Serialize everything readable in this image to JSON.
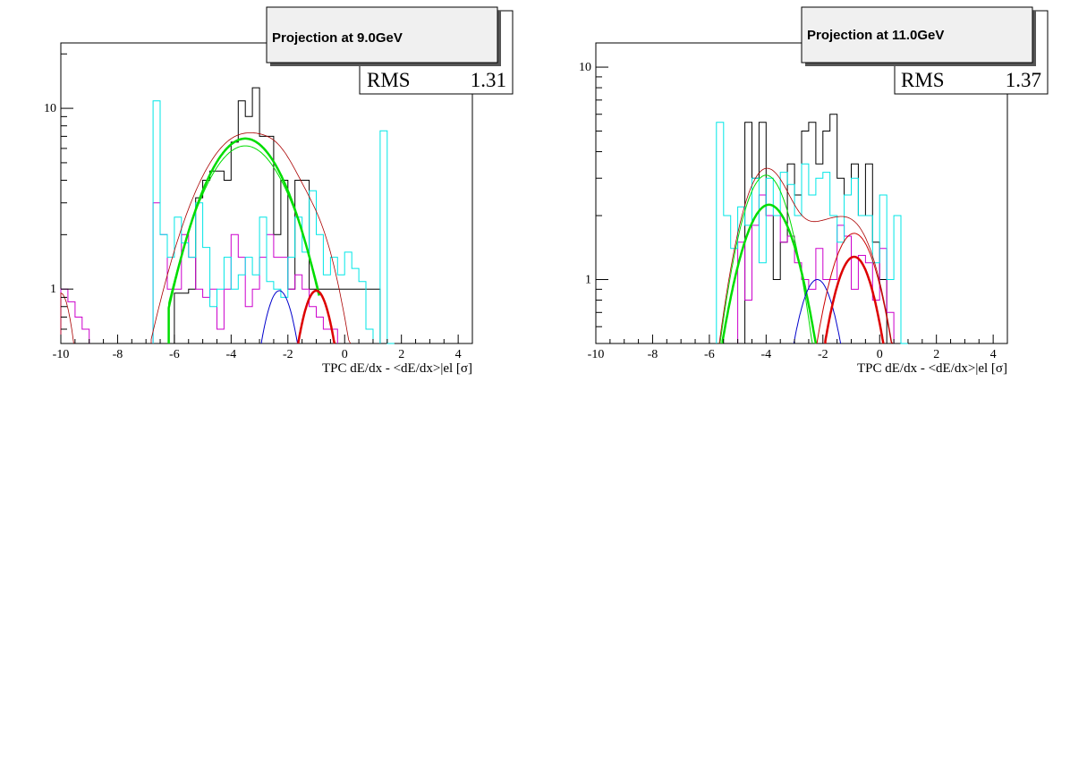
{
  "chart_data": [
    {
      "type": "histogram",
      "title": "Projection at 9.0GeV",
      "xlabel": "TPC dE/dx - <dE/dx>|el [σ]",
      "ylabel": "",
      "log_y": true,
      "xlim": [
        -10,
        4.5
      ],
      "ylim": [
        0.5,
        23
      ],
      "x_ticks": [
        "-10",
        "-8",
        "-6",
        "-4",
        "-2",
        "0",
        "2",
        "4"
      ],
      "y_ticks": [
        "1",
        "10"
      ],
      "stats": {
        "label": "RMS",
        "value": "1.31"
      },
      "bin_width": 0.25,
      "series": [
        {
          "color": "#000000",
          "kind": "hist",
          "bins": [
            [
              -6,
              0.95
            ],
            [
              -5.75,
              0.95
            ],
            [
              -5.5,
              1
            ],
            [
              -5.25,
              3.2
            ],
            [
              -5,
              4
            ],
            [
              -4.75,
              4.5
            ],
            [
              -4.5,
              4.5
            ],
            [
              -4.25,
              4
            ],
            [
              -4,
              6.5
            ],
            [
              -3.75,
              11
            ],
            [
              -3.5,
              9
            ],
            [
              -3.25,
              13
            ],
            [
              -3,
              7
            ],
            [
              -2.75,
              7
            ],
            [
              -2.5,
              2
            ],
            [
              -2.25,
              4
            ],
            [
              -2,
              1
            ],
            [
              -1.75,
              4
            ],
            [
              -1.5,
              4
            ],
            [
              -1.25,
              1
            ],
            [
              -1,
              1
            ],
            [
              -0.75,
              1
            ],
            [
              -0.5,
              1
            ],
            [
              -0.25,
              1
            ],
            [
              0,
              1
            ],
            [
              0.25,
              1
            ],
            [
              0.5,
              1
            ],
            [
              0.75,
              1
            ],
            [
              1,
              1
            ]
          ]
        },
        {
          "color": "#cc00cc",
          "kind": "hist",
          "bins": [
            [
              -10,
              1
            ],
            [
              -9.75,
              0.85
            ],
            [
              -9.5,
              0.7
            ],
            [
              -9.25,
              0.6
            ],
            [
              -6.75,
              3
            ],
            [
              -6.5,
              2
            ],
            [
              -6.25,
              1
            ],
            [
              -6,
              1
            ],
            [
              -5.75,
              2
            ],
            [
              -5.5,
              1.5
            ],
            [
              -5.25,
              1
            ],
            [
              -5,
              0.9
            ],
            [
              -4.75,
              1
            ],
            [
              -4.5,
              0.6
            ],
            [
              -4.25,
              1
            ],
            [
              -4,
              2
            ],
            [
              -3.75,
              1.5
            ],
            [
              -3.5,
              0.8
            ],
            [
              -3.25,
              1
            ],
            [
              -3,
              1.5
            ],
            [
              -2.75,
              2
            ],
            [
              -2.5,
              1.5
            ],
            [
              -2.25,
              1.5
            ],
            [
              -2,
              1
            ],
            [
              -1.75,
              1.2
            ],
            [
              -1.5,
              1
            ],
            [
              -1.25,
              0.8
            ],
            [
              -1,
              0.7
            ],
            [
              -0.75,
              0.6
            ],
            [
              -0.5,
              0.6
            ]
          ]
        },
        {
          "color": "#00e6e6",
          "kind": "hist",
          "bins": [
            [
              -6.75,
              11
            ],
            [
              -6.5,
              2
            ],
            [
              -6.25,
              1.5
            ],
            [
              -6,
              2.5
            ],
            [
              -5.75,
              1.8
            ],
            [
              -5.5,
              1.5
            ],
            [
              -5.25,
              3
            ],
            [
              -5,
              1.7
            ],
            [
              -4.75,
              0.8
            ],
            [
              -4.5,
              1
            ],
            [
              -4.25,
              1.5
            ],
            [
              -4,
              1
            ],
            [
              -3.75,
              1.2
            ],
            [
              -3.5,
              1.5
            ],
            [
              -3.25,
              1.2
            ],
            [
              -3,
              2.5
            ],
            [
              -2.75,
              1.1
            ],
            [
              -2.5,
              1
            ],
            [
              -2.25,
              0.9
            ],
            [
              -2,
              1.5
            ],
            [
              -1.75,
              2.5
            ],
            [
              -1.5,
              1.6
            ],
            [
              -1.25,
              3.5
            ],
            [
              -1,
              2
            ],
            [
              -0.75,
              1.2
            ],
            [
              -0.5,
              1.5
            ],
            [
              -0.25,
              1.2
            ],
            [
              0,
              1.6
            ],
            [
              0.25,
              1.3
            ],
            [
              0.5,
              1.1
            ],
            [
              0.75,
              0.6
            ],
            [
              1.25,
              7.5
            ],
            [
              1.5,
              0.5
            ]
          ]
        },
        {
          "color": "#00dd00",
          "kind": "gauss",
          "amp": 6.8,
          "mean": -3.5,
          "sigma": 1.3,
          "range": [
            -6.2,
            -0.9
          ],
          "width": 2.5
        },
        {
          "color": "#00dd00",
          "kind": "gauss",
          "amp": 6.2,
          "mean": -3.5,
          "sigma": 1.35,
          "range": [
            -6.2,
            -0.9
          ],
          "width": 1
        },
        {
          "color": "#0000cc",
          "kind": "gauss",
          "amp": 0.98,
          "mean": -2.3,
          "sigma": 0.55,
          "range": [
            -3.5,
            -1.0
          ],
          "width": 1
        },
        {
          "color": "#dd0000",
          "kind": "gauss",
          "amp": 0.98,
          "mean": -1.0,
          "sigma": 0.55,
          "range": [
            -2.4,
            0.4
          ],
          "width": 2.5
        },
        {
          "color": "#aa0000",
          "kind": "sum",
          "comps": [
            [
              7.2,
              -3.5,
              1.45
            ],
            [
              0.98,
              -2.3,
              0.55
            ],
            [
              1.0,
              -1.0,
              0.65
            ],
            [
              0.95,
              -10.0,
              0.4
            ]
          ],
          "range": [
            -10,
            0.4
          ],
          "width": 0.8
        }
      ]
    },
    {
      "type": "histogram",
      "title": "Projection at 11.0GeV",
      "xlabel": "TPC dE/dx - <dE/dx>|el [σ]",
      "ylabel": "",
      "log_y": true,
      "xlim": [
        -10,
        4.5
      ],
      "ylim": [
        0.5,
        13
      ],
      "x_ticks": [
        "-10",
        "-8",
        "-6",
        "-4",
        "-2",
        "0",
        "2",
        "4"
      ],
      "y_ticks": [
        "1",
        "10"
      ],
      "stats": {
        "label": "RMS",
        "value": "1.37"
      },
      "bin_width": 0.25,
      "series": [
        {
          "color": "#000000",
          "kind": "hist",
          "bins": [
            [
              -4.75,
              5.5
            ],
            [
              -4.5,
              3
            ],
            [
              -4.25,
              5.5
            ],
            [
              -4,
              2
            ],
            [
              -3.75,
              1
            ],
            [
              -3.5,
              1.5
            ],
            [
              -3.25,
              3.5
            ],
            [
              -3,
              2.5
            ],
            [
              -2.75,
              5
            ],
            [
              -2.5,
              5.5
            ],
            [
              -2.25,
              3.5
            ],
            [
              -2,
              5
            ],
            [
              -1.75,
              6
            ],
            [
              -1.5,
              3
            ],
            [
              -1.25,
              2.5
            ],
            [
              -1,
              3.5
            ],
            [
              -0.75,
              2
            ],
            [
              -0.5,
              3.5
            ],
            [
              -0.25,
              1.5
            ],
            [
              0,
              1
            ]
          ]
        },
        {
          "color": "#cc00cc",
          "kind": "hist",
          "bins": [
            [
              -5,
              1.5
            ],
            [
              -4.75,
              0.8
            ],
            [
              -4.5,
              1.8
            ],
            [
              -4.25,
              2.5
            ],
            [
              -4,
              2
            ],
            [
              -3.75,
              2
            ],
            [
              -3.5,
              1.5
            ],
            [
              -3.25,
              1.6
            ],
            [
              -3,
              1.2
            ],
            [
              -2.75,
              1
            ],
            [
              -2.5,
              0.9
            ],
            [
              -2.25,
              1.4
            ],
            [
              -2,
              1
            ],
            [
              -1.75,
              1
            ],
            [
              -1.5,
              1.8
            ],
            [
              -1.25,
              1.6
            ],
            [
              -1,
              0.9
            ],
            [
              -0.75,
              1.3
            ],
            [
              -0.5,
              1.2
            ],
            [
              -0.25,
              0.8
            ],
            [
              0,
              1.4
            ],
            [
              0.25,
              0.7
            ]
          ]
        },
        {
          "color": "#00e6e6",
          "kind": "hist",
          "bins": [
            [
              -5.75,
              5.5
            ],
            [
              -5.5,
              2
            ],
            [
              -5.25,
              1.4
            ],
            [
              -5,
              2.2
            ],
            [
              -4.75,
              1.8
            ],
            [
              -4.5,
              3
            ],
            [
              -4.25,
              1.2
            ],
            [
              -4,
              3
            ],
            [
              -3.75,
              2
            ],
            [
              -3.5,
              3.2
            ],
            [
              -3.25,
              2.8
            ],
            [
              -3,
              2
            ],
            [
              -2.75,
              3.5
            ],
            [
              -2.5,
              2.5
            ],
            [
              -2.25,
              3
            ],
            [
              -2,
              3.2
            ],
            [
              -1.75,
              2
            ],
            [
              -1.5,
              1.5
            ],
            [
              -1.25,
              2.5
            ],
            [
              -1,
              3
            ],
            [
              -0.75,
              2
            ],
            [
              -0.5,
              2
            ],
            [
              -0.25,
              1.2
            ],
            [
              0,
              2.5
            ],
            [
              0.25,
              1
            ],
            [
              0.5,
              2
            ],
            [
              0.75,
              0.5
            ]
          ]
        },
        {
          "color": "#00dd00",
          "kind": "gauss",
          "amp": 2.25,
          "mean": -3.9,
          "sigma": 0.95,
          "range": [
            -5.8,
            -1.9
          ],
          "width": 2.5
        },
        {
          "color": "#00dd00",
          "kind": "gauss",
          "amp": 3.1,
          "mean": -4.0,
          "sigma": 0.85,
          "range": [
            -5.8,
            -1.7
          ],
          "width": 1
        },
        {
          "color": "#0000cc",
          "kind": "gauss",
          "amp": 1.0,
          "mean": -2.2,
          "sigma": 0.7,
          "range": [
            -3.7,
            -0.6
          ],
          "width": 1
        },
        {
          "color": "#dd0000",
          "kind": "gauss",
          "amp": 1.28,
          "mean": -0.9,
          "sigma": 0.75,
          "range": [
            -2.3,
            0.5
          ],
          "width": 2.5
        },
        {
          "color": "#cc0000",
          "kind": "gauss",
          "amp": 1.65,
          "mean": -0.9,
          "sigma": 0.85,
          "range": [
            -2.6,
            0.5
          ],
          "width": 1
        },
        {
          "color": "#aa0000",
          "kind": "sum",
          "comps": [
            [
              3.3,
              -4.0,
              0.85
            ],
            [
              1.0,
              -2.2,
              0.7
            ],
            [
              1.7,
              -0.9,
              0.85
            ]
          ],
          "range": [
            -5.8,
            0.5
          ],
          "width": 0.8
        }
      ]
    }
  ]
}
